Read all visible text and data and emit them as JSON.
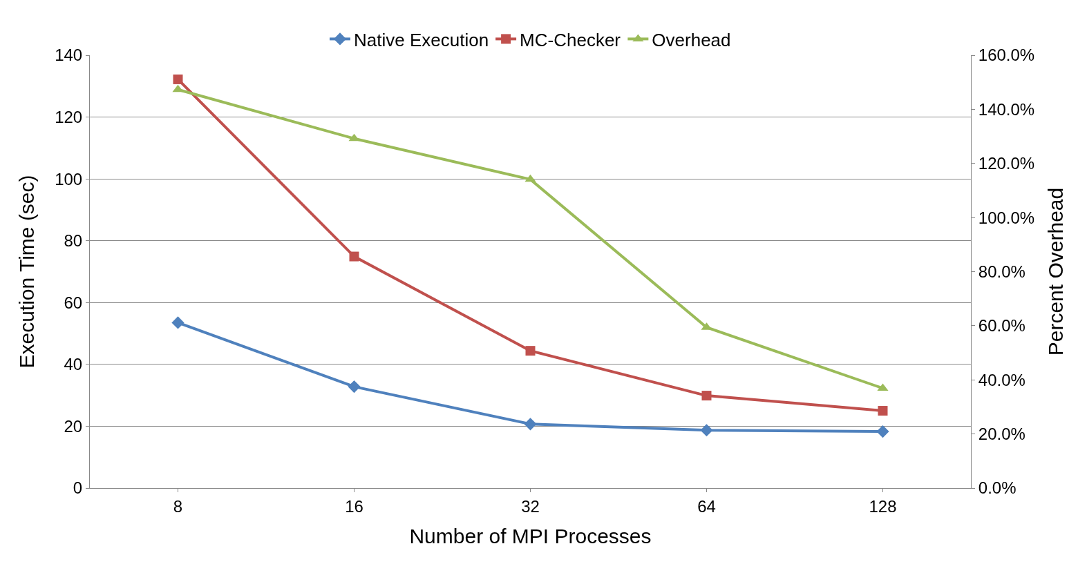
{
  "chart_data": {
    "type": "line",
    "xlabel": "Number of MPI Processes",
    "ylabel": "Execution Time (sec)",
    "y2label": "Percent Overhead",
    "categories": [
      "8",
      "16",
      "32",
      "64",
      "128"
    ],
    "series": [
      {
        "name": "Native Execution",
        "color": "#4f81bd",
        "marker": "diamond",
        "values": [
          53.5,
          32.8,
          20.7,
          18.7,
          18.3
        ]
      },
      {
        "name": "MC-Checker",
        "color": "#c0504d",
        "marker": "square",
        "values": [
          132.2,
          74.9,
          44.4,
          29.9,
          25.0
        ]
      },
      {
        "name": "Overhead",
        "color": "#9bbb59",
        "marker": "triangle",
        "axis": "y2",
        "values": [
          147.3,
          129.2,
          114.1,
          59.4,
          36.9
        ]
      }
    ],
    "ylim": [
      0,
      140
    ],
    "yticks": [
      0,
      20,
      40,
      60,
      80,
      100,
      120,
      140
    ],
    "y2lim": [
      0,
      160
    ],
    "y2ticks": [
      {
        "value": 0,
        "label": "0.0%"
      },
      {
        "value": 20,
        "label": "20.0%"
      },
      {
        "value": 40,
        "label": "40.0%"
      },
      {
        "value": 60,
        "label": "60.0%"
      },
      {
        "value": 80,
        "label": "80.0%"
      },
      {
        "value": 100,
        "label": "100.0%"
      },
      {
        "value": 120,
        "label": "120.0%"
      },
      {
        "value": 140,
        "label": "140.0%"
      },
      {
        "value": 160,
        "label": "160.0%"
      }
    ],
    "grid": "y",
    "legend": "top",
    "line_style": "solid"
  }
}
